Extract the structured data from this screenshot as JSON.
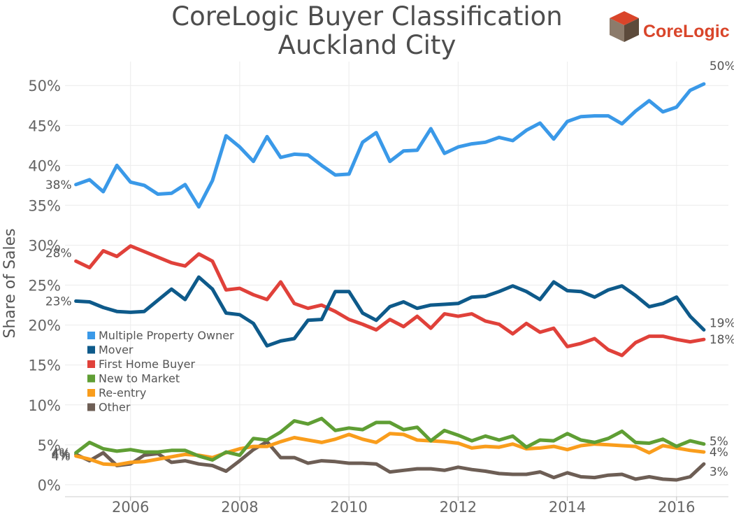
{
  "title_line1": "CoreLogic Buyer Classification",
  "title_line2": "Auckland City",
  "logo": {
    "text": "CoreLogic",
    "colors": [
      "#d9452a",
      "#8c7b6b",
      "#5c4a3b"
    ]
  },
  "chart_data": {
    "type": "line",
    "ylabel": "Share of Sales",
    "xlabel": "",
    "xlim": [
      2004.8,
      2016.95
    ],
    "ylim": [
      -1.5,
      53
    ],
    "x_ticks": [
      2006,
      2008,
      2010,
      2012,
      2014,
      2016
    ],
    "x_tick_labels": [
      "2006",
      "2008",
      "2010",
      "2012",
      "2014",
      "2016"
    ],
    "y_ticks": [
      0,
      5,
      10,
      15,
      20,
      25,
      30,
      35,
      40,
      45,
      50
    ],
    "y_tick_labels": [
      "0%",
      "5%",
      "10%",
      "15%",
      "20%",
      "25%",
      "30%",
      "35%",
      "40%",
      "45%",
      "50%"
    ],
    "grid": true,
    "legend_position": "left-middle",
    "x_start": 2005.0,
    "x_step": 0.25,
    "series": [
      {
        "name": "Multiple Property Owner",
        "color": "#3a99e8",
        "start_label": "38%",
        "end_label": "50%",
        "values": [
          37.6,
          38.2,
          36.7,
          40.0,
          37.9,
          37.5,
          36.4,
          36.5,
          37.6,
          34.8,
          38.1,
          43.7,
          42.3,
          40.5,
          43.6,
          41.0,
          41.4,
          41.3,
          40.0,
          38.8,
          38.9,
          42.9,
          44.1,
          40.5,
          41.8,
          41.9,
          44.6,
          41.5,
          42.3,
          42.7,
          42.9,
          43.5,
          43.1,
          44.4,
          45.3,
          43.3,
          45.5,
          46.1,
          46.2,
          46.2,
          45.2,
          46.8,
          48.1,
          46.7,
          47.3,
          49.4,
          50.2
        ]
      },
      {
        "name": "Mover",
        "color": "#0e5a8a",
        "start_label": "23%",
        "end_label": "19%",
        "values": [
          23.0,
          22.9,
          22.2,
          21.7,
          21.6,
          21.7,
          23.1,
          24.5,
          23.2,
          26.0,
          24.5,
          21.5,
          21.3,
          20.2,
          17.4,
          18.0,
          18.3,
          20.6,
          20.7,
          24.2,
          24.2,
          21.5,
          20.6,
          22.3,
          22.9,
          22.1,
          22.5,
          22.6,
          22.7,
          23.5,
          23.6,
          24.2,
          24.9,
          24.2,
          23.2,
          25.4,
          24.3,
          24.2,
          23.5,
          24.4,
          24.9,
          23.7,
          22.3,
          22.7,
          23.5,
          21.1,
          19.4
        ]
      },
      {
        "name": "First Home Buyer",
        "color": "#e0413a",
        "start_label": "28%",
        "end_label": "18%",
        "values": [
          28.0,
          27.2,
          29.3,
          28.6,
          29.9,
          29.2,
          28.5,
          27.8,
          27.4,
          28.9,
          28.0,
          24.4,
          24.6,
          23.8,
          23.2,
          25.4,
          22.7,
          22.1,
          22.5,
          21.7,
          20.7,
          20.1,
          19.4,
          20.7,
          19.8,
          21.1,
          19.6,
          21.4,
          21.1,
          21.4,
          20.5,
          20.1,
          18.9,
          20.2,
          19.1,
          19.6,
          17.3,
          17.7,
          18.3,
          16.9,
          16.2,
          17.8,
          18.6,
          18.6,
          18.2,
          17.9,
          18.2
        ]
      },
      {
        "name": "New to Market",
        "color": "#5f9e34",
        "start_label": "4%",
        "end_label": "5%",
        "values": [
          4.0,
          5.3,
          4.5,
          4.2,
          4.4,
          4.1,
          4.1,
          4.3,
          4.3,
          3.6,
          3.1,
          4.1,
          3.7,
          5.8,
          5.6,
          6.6,
          8.0,
          7.6,
          8.3,
          6.8,
          7.1,
          6.9,
          7.8,
          7.8,
          6.9,
          7.2,
          5.5,
          6.8,
          6.2,
          5.5,
          6.1,
          5.6,
          6.1,
          4.7,
          5.6,
          5.5,
          6.4,
          5.6,
          5.3,
          5.8,
          6.7,
          5.3,
          5.2,
          5.7,
          4.8,
          5.5,
          5.1
        ]
      },
      {
        "name": "Re-entry",
        "color": "#f99d1c",
        "start_label": "4%",
        "end_label": "4%",
        "values": [
          3.6,
          3.2,
          2.6,
          2.5,
          2.8,
          2.9,
          3.2,
          3.5,
          3.8,
          3.7,
          3.4,
          4.0,
          4.5,
          4.8,
          4.8,
          5.4,
          5.9,
          5.6,
          5.3,
          5.7,
          6.3,
          5.7,
          5.3,
          6.4,
          6.3,
          5.6,
          5.5,
          5.4,
          5.2,
          4.6,
          4.8,
          4.7,
          5.1,
          4.5,
          4.6,
          4.8,
          4.4,
          4.9,
          5.1,
          5.0,
          4.9,
          4.8,
          4.0,
          4.9,
          4.6,
          4.3,
          4.1
        ]
      },
      {
        "name": "Other",
        "color": "#6d5e55",
        "start_label": "4%",
        "end_label": "3%",
        "values": [
          3.8,
          3.0,
          4.0,
          2.4,
          2.6,
          3.7,
          3.9,
          2.8,
          3.0,
          2.6,
          2.4,
          1.7,
          3.0,
          4.4,
          5.4,
          3.4,
          3.4,
          2.7,
          3.0,
          2.9,
          2.7,
          2.7,
          2.6,
          1.6,
          1.8,
          2.0,
          2.0,
          1.8,
          2.2,
          1.9,
          1.7,
          1.4,
          1.3,
          1.3,
          1.6,
          0.9,
          1.5,
          1.0,
          0.9,
          1.2,
          1.3,
          0.7,
          1.0,
          0.7,
          0.6,
          1.0,
          2.6
        ]
      }
    ]
  }
}
